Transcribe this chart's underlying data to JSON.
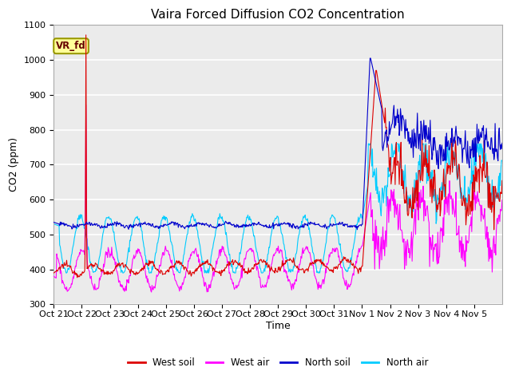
{
  "title": "Vaira Forced Diffusion CO2 Concentration",
  "xlabel": "Time",
  "ylabel": "CO2 (ppm)",
  "ylim": [
    300,
    1100
  ],
  "legend_label": "VR_fd",
  "legend_box_color": "#ffff99",
  "legend_box_edge": "#999900",
  "series_colors": {
    "west_soil": "#dd0000",
    "west_air": "#ff00ff",
    "north_soil": "#0000cc",
    "north_air": "#00ccff"
  },
  "x_tick_labels": [
    "Oct 21",
    "Oct 22",
    "Oct 23",
    "Oct 24",
    "Oct 25",
    "Oct 26",
    "Oct 27",
    "Oct 28",
    "Oct 29",
    "Oct 30",
    "Oct 31",
    "Nov 1",
    "Nov 2",
    "Nov 3",
    "Nov 4",
    "Nov 5"
  ],
  "background_color": "#ebebeb",
  "grid_color": "#ffffff",
  "legend_entries": [
    "West soil",
    "West air",
    "North soil",
    "North air"
  ]
}
